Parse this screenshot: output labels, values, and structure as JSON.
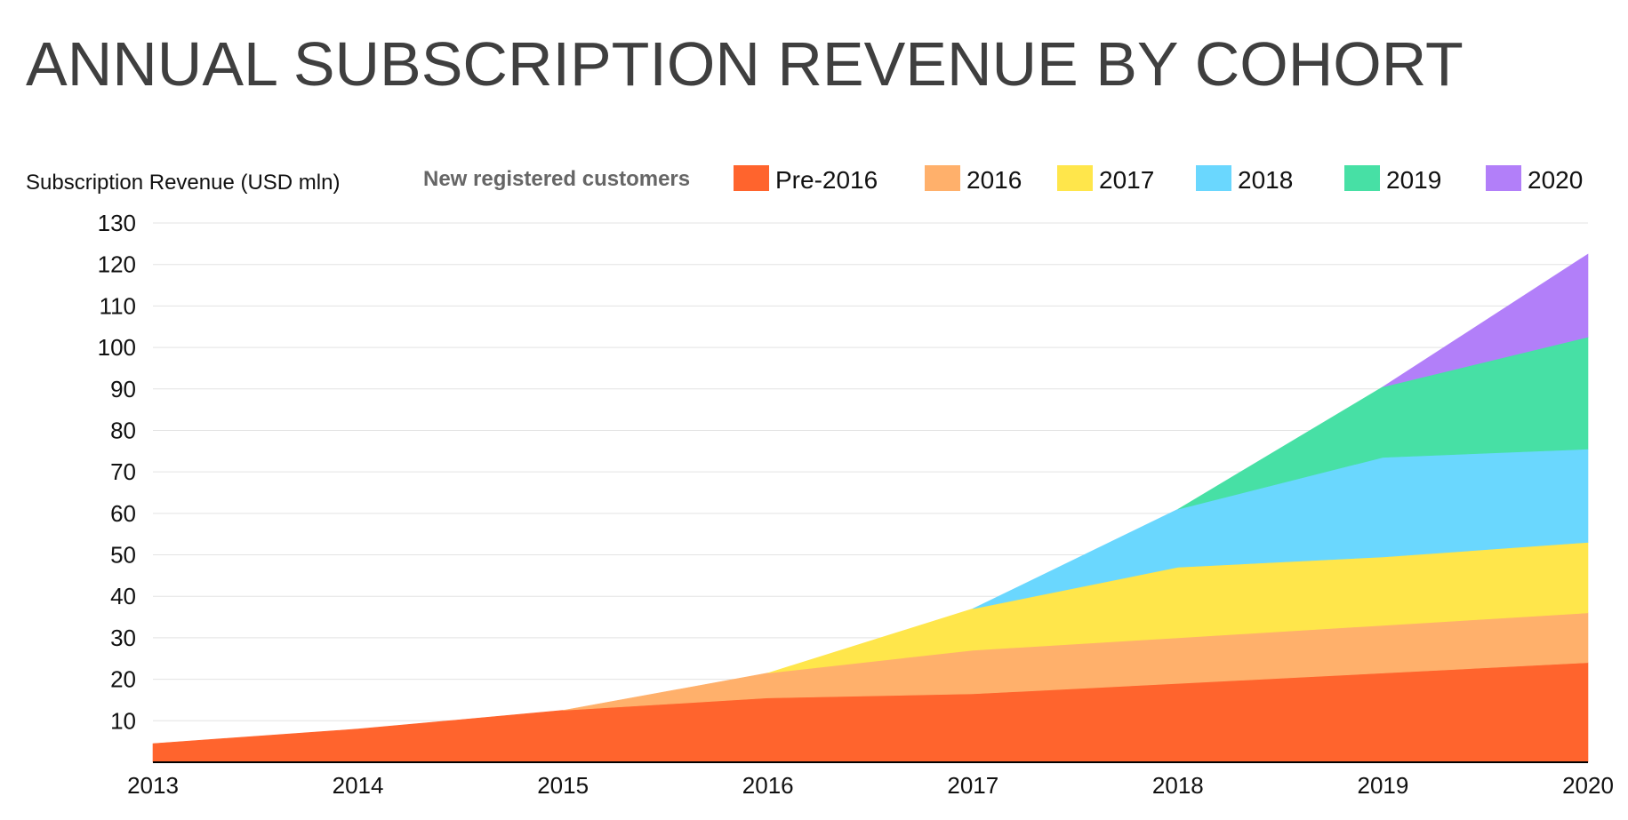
{
  "chart_data": {
    "type": "area",
    "stacked": true,
    "title": "ANNUAL SUBSCRIPTION REVENUE BY COHORT",
    "ylabel": "Subscription Revenue (USD mln)",
    "xlabel": "",
    "legend_title": "New registered customers",
    "legend_position": "top",
    "grid": true,
    "x": [
      "2013",
      "2014",
      "2015",
      "2016",
      "2017",
      "2018",
      "2019",
      "2020"
    ],
    "ylim": [
      0,
      130
    ],
    "yticks": [
      10,
      20,
      30,
      40,
      50,
      60,
      70,
      80,
      90,
      100,
      110,
      120,
      130
    ],
    "series": [
      {
        "name": "Pre-2016",
        "color": "#ff642d",
        "values": [
          4.5,
          8,
          12.5,
          15.5,
          16.5,
          19,
          21.5,
          24
        ]
      },
      {
        "name": "2016",
        "color": "#ffb06b",
        "values": [
          null,
          null,
          0,
          6,
          10.5,
          11,
          11.5,
          12
        ]
      },
      {
        "name": "2017",
        "color": "#ffe64b",
        "values": [
          null,
          null,
          null,
          0,
          10,
          17,
          16.5,
          17
        ]
      },
      {
        "name": "2018",
        "color": "#6ad7fe",
        "values": [
          null,
          null,
          null,
          null,
          0,
          14,
          24,
          22.5
        ]
      },
      {
        "name": "2019",
        "color": "#47e0a5",
        "values": [
          null,
          null,
          null,
          null,
          null,
          0,
          17,
          27
        ]
      },
      {
        "name": "2020",
        "color": "#b27ff9",
        "values": [
          null,
          null,
          null,
          null,
          null,
          null,
          0,
          20
        ]
      }
    ]
  }
}
